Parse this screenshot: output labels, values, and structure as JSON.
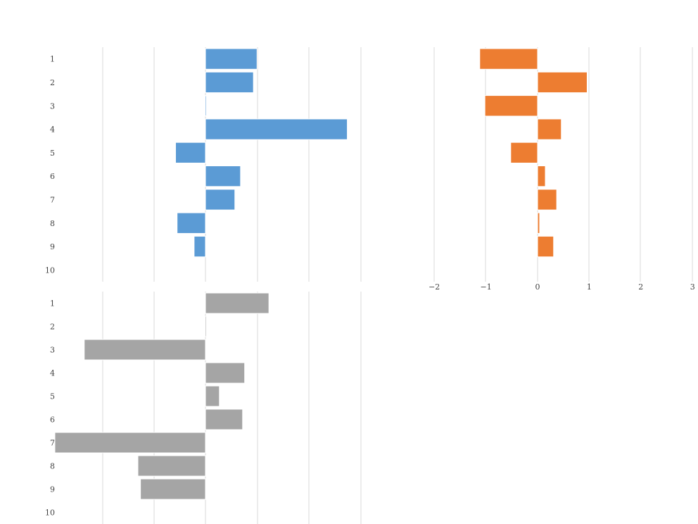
{
  "chart_data": [
    {
      "type": "bar",
      "orientation": "horizontal",
      "panel": "top-left",
      "color": "#5b9bd5",
      "categories": [
        "1",
        "2",
        "3",
        "4",
        "5",
        "6",
        "7",
        "8",
        "9",
        "10"
      ],
      "values": [
        1.0,
        0.93,
        0.02,
        2.75,
        -0.58,
        0.68,
        0.57,
        -0.55,
        -0.22,
        null
      ],
      "xlim": [
        -3,
        3
      ],
      "xticks": [],
      "grid": true
    },
    {
      "type": "bar",
      "orientation": "horizontal",
      "panel": "top-right",
      "color": "#ed7d31",
      "categories": [
        "1",
        "2",
        "3",
        "4",
        "5",
        "6",
        "7",
        "8",
        "9",
        "10"
      ],
      "values": [
        -1.12,
        0.96,
        -1.02,
        0.46,
        -0.52,
        0.15,
        0.37,
        0.04,
        0.31,
        null
      ],
      "xlim": [
        -2,
        3
      ],
      "xticks": [
        -2,
        -1,
        0,
        1,
        2,
        3
      ],
      "xtick_labels": [
        "−2",
        "−1",
        "0",
        "1",
        "2",
        "3"
      ],
      "grid": true
    },
    {
      "type": "bar",
      "orientation": "horizontal",
      "panel": "bottom-left",
      "color": "#a5a5a5",
      "categories": [
        "1",
        "2",
        "3",
        "4",
        "5",
        "6",
        "7",
        "8",
        "9",
        "10"
      ],
      "values": [
        1.23,
        0.02,
        -2.35,
        0.76,
        0.27,
        0.72,
        -2.92,
        -1.31,
        -1.26,
        null
      ],
      "xlim": [
        -3,
        3
      ],
      "xticks": [],
      "grid": true
    }
  ]
}
